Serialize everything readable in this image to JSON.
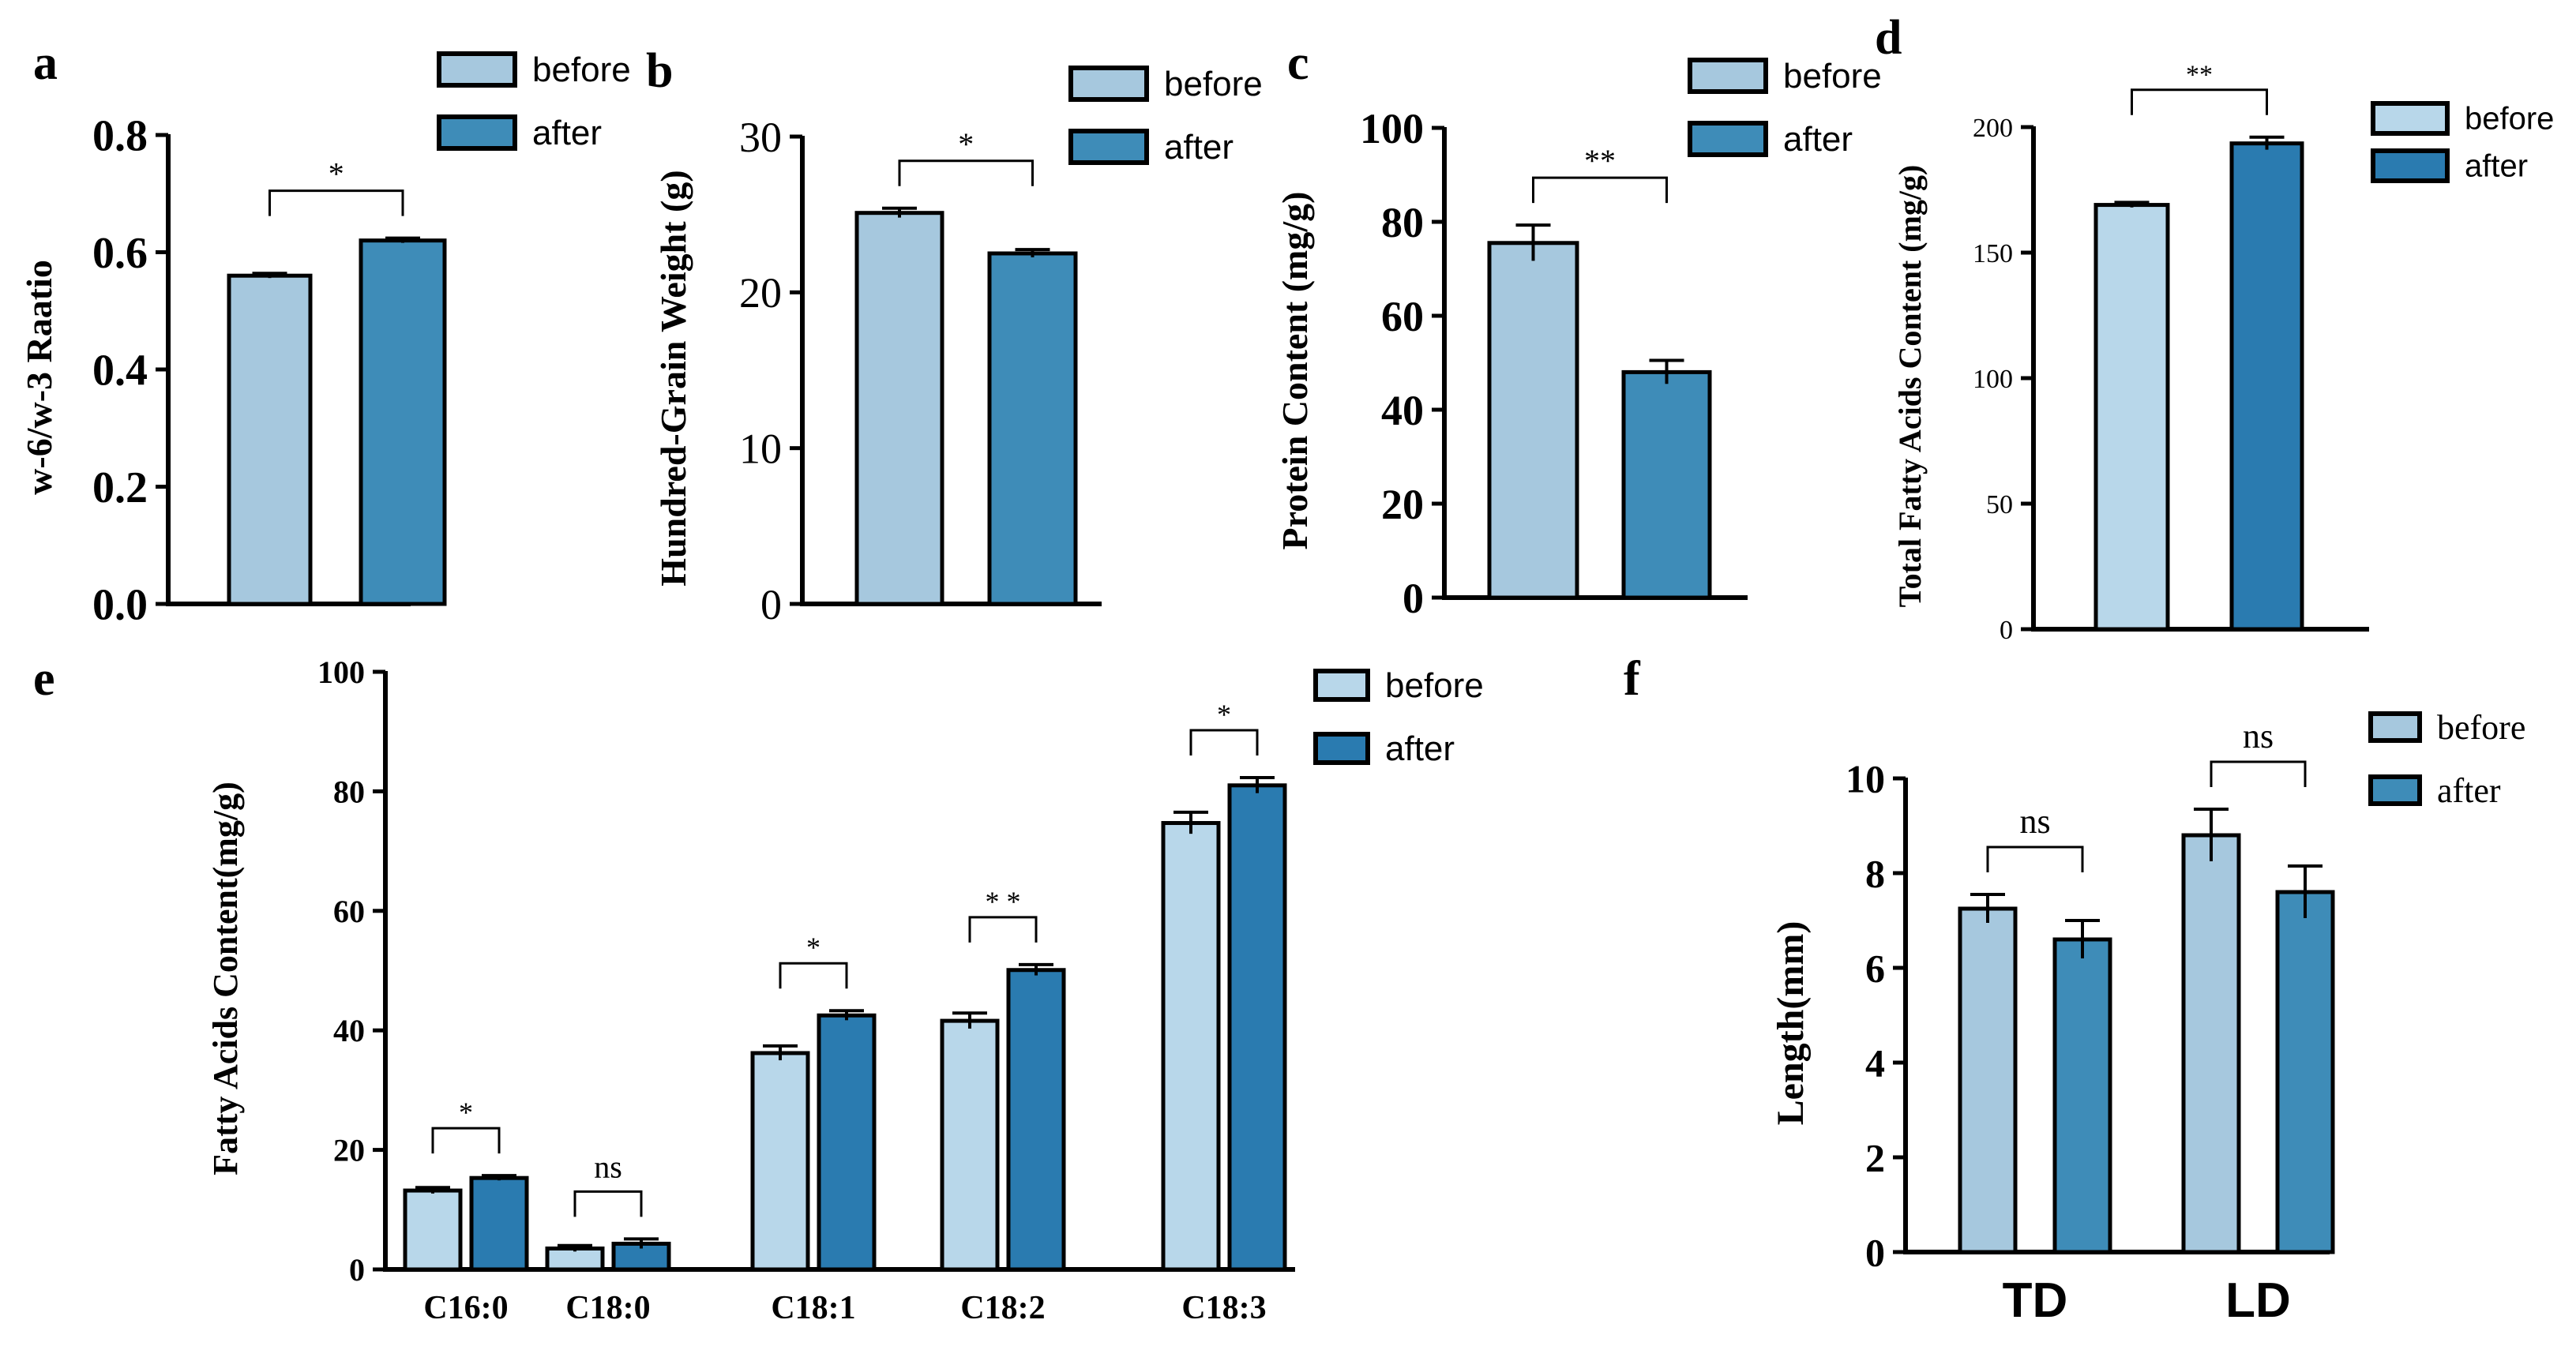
{
  "colors": {
    "before_a": "#A6C8DE",
    "after_a": "#3E8CB8",
    "before_d": "#B8D7EA",
    "after_d": "#2A7BB0",
    "stroke": "#000000"
  },
  "chart_data": [
    {
      "panel": "a",
      "type": "bar",
      "ylabel": "w-6/w-3 Raatio",
      "ylim": [
        0,
        0.8
      ],
      "yticks": [
        "0.0",
        "0.2",
        "0.4",
        "0.6",
        "0.8"
      ],
      "categories": [
        ""
      ],
      "series": [
        {
          "name": "before",
          "values": [
            0.56
          ],
          "errors": [
            0.004
          ]
        },
        {
          "name": "after",
          "values": [
            0.62
          ],
          "errors": [
            0.004
          ]
        }
      ],
      "significance": [
        {
          "label": "*"
        }
      ],
      "legend": [
        "before",
        "after"
      ],
      "legend_position": "top-right"
    },
    {
      "panel": "b",
      "type": "bar",
      "ylabel": "Hundred-Grain Weight (g)",
      "ylim": [
        0,
        30
      ],
      "yticks": [
        "0",
        "10",
        "20",
        "30"
      ],
      "categories": [
        ""
      ],
      "series": [
        {
          "name": "before",
          "values": [
            25.1
          ],
          "errors": [
            0.3
          ]
        },
        {
          "name": "after",
          "values": [
            22.5
          ],
          "errors": [
            0.25
          ]
        }
      ],
      "significance": [
        {
          "label": "*"
        }
      ],
      "legend": [
        "before",
        "after"
      ],
      "legend_position": "top-right"
    },
    {
      "panel": "c",
      "type": "bar",
      "ylabel": "Protein Content (mg/g)",
      "ylim": [
        0,
        100
      ],
      "yticks": [
        "0",
        "20",
        "40",
        "60",
        "80",
        "100"
      ],
      "categories": [
        ""
      ],
      "series": [
        {
          "name": "before",
          "values": [
            75.5
          ],
          "errors": [
            3.8
          ]
        },
        {
          "name": "after",
          "values": [
            48
          ],
          "errors": [
            2.5
          ]
        }
      ],
      "significance": [
        {
          "label": "**"
        }
      ],
      "legend": [
        "before",
        "after"
      ],
      "legend_position": "top-right"
    },
    {
      "panel": "d",
      "type": "bar",
      "ylabel": "Total Fatty Acids Content (mg/g)",
      "ylim": [
        0,
        200
      ],
      "yticks": [
        "0",
        "50",
        "100",
        "150",
        "200"
      ],
      "categories": [
        ""
      ],
      "series": [
        {
          "name": "before",
          "values": [
            169
          ],
          "errors": [
            1
          ]
        },
        {
          "name": "after",
          "values": [
            193.5
          ],
          "errors": [
            2.5
          ]
        }
      ],
      "significance": [
        {
          "label": "**"
        }
      ],
      "legend": [
        "before",
        "after"
      ],
      "legend_position": "top-right"
    },
    {
      "panel": "e",
      "type": "bar",
      "ylabel": "Fatty Acids Content(mg/g)",
      "ylim": [
        0,
        100
      ],
      "yticks": [
        "0",
        "20",
        "40",
        "60",
        "80",
        "100"
      ],
      "categories": [
        "C16:0",
        "C18:0",
        "C18:1",
        "C18:2",
        "C18:3"
      ],
      "series": [
        {
          "name": "before",
          "values": [
            13.2,
            3.5,
            36.2,
            41.6,
            74.7
          ],
          "errors": [
            0.5,
            0.5,
            1.2,
            1.3,
            1.8
          ]
        },
        {
          "name": "after",
          "values": [
            15.3,
            4.3,
            42.5,
            50.1,
            81
          ],
          "errors": [
            0.4,
            0.8,
            0.8,
            0.9,
            1.3
          ]
        }
      ],
      "significance": [
        {
          "label": "*"
        },
        {
          "label": "ns"
        },
        {
          "label": "*"
        },
        {
          "label": "* *"
        },
        {
          "label": "*"
        }
      ],
      "legend": [
        "before",
        "after"
      ],
      "legend_position": "top-right"
    },
    {
      "panel": "f",
      "type": "bar",
      "ylabel": "Length(mm)",
      "ylim": [
        0,
        10
      ],
      "yticks": [
        "0",
        "2",
        "4",
        "6",
        "8",
        "10"
      ],
      "categories": [
        "TD",
        "LD"
      ],
      "series": [
        {
          "name": "before",
          "values": [
            7.25,
            8.8
          ],
          "errors": [
            0.3,
            0.55
          ]
        },
        {
          "name": "after",
          "values": [
            6.6,
            7.6
          ],
          "errors": [
            0.4,
            0.55
          ]
        }
      ],
      "significance": [
        {
          "label": "ns"
        },
        {
          "label": "ns"
        }
      ],
      "legend": [
        "before",
        "after"
      ],
      "legend_position": "top-right"
    }
  ]
}
